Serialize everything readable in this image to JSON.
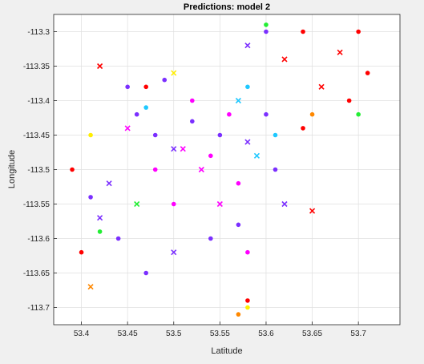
{
  "chart_data": {
    "type": "scatter",
    "title": "Predictions: model 2",
    "xlabel": "Latitude",
    "ylabel": "Longitude",
    "xlim": [
      53.37,
      53.745
    ],
    "ylim": [
      -113.725,
      -113.275
    ],
    "xticks": [
      53.4,
      53.45,
      53.5,
      53.55,
      53.6,
      53.65,
      53.7
    ],
    "xtick_labels": [
      "53.4",
      "53.45",
      "53.5",
      "53.55",
      "53.6",
      "53.65",
      "53.7"
    ],
    "yticks": [
      -113.3,
      -113.35,
      -113.4,
      -113.45,
      -113.5,
      -113.55,
      -113.6,
      -113.65,
      -113.7
    ],
    "ytick_labels": [
      "-113.3",
      "-113.35",
      "-113.4",
      "-113.45",
      "-113.5",
      "-113.55",
      "-113.6",
      "-113.65",
      "-113.7"
    ],
    "grid": true,
    "legend": "none",
    "marker_styles": [
      "filled-circle",
      "x-cross"
    ],
    "colors": {
      "violet": "#7b2fff",
      "blue_purple": "#5a20ee",
      "magenta": "#ff00ff",
      "pink": "#ff1aa0",
      "red": "#ff0000",
      "cyan": "#1fc8ff",
      "green": "#22ee33",
      "yellow": "#ffee00",
      "orange": "#ff8800"
    },
    "series": [
      {
        "color": "violet",
        "points": [
          [
            53.41,
            -113.54
          ],
          [
            53.43,
            -113.52
          ],
          [
            53.46,
            -113.42
          ],
          [
            53.48,
            -113.45
          ],
          [
            53.5,
            -113.47
          ],
          [
            53.52,
            -113.43
          ],
          [
            53.55,
            -113.45
          ],
          [
            53.58,
            -113.46
          ],
          [
            53.6,
            -113.42
          ],
          [
            53.61,
            -113.5
          ],
          [
            53.62,
            -113.55
          ],
          [
            53.57,
            -113.58
          ],
          [
            53.54,
            -113.6
          ],
          [
            53.5,
            -113.62
          ],
          [
            53.47,
            -113.65
          ],
          [
            53.44,
            -113.6
          ],
          [
            53.42,
            -113.57
          ],
          [
            53.45,
            -113.38
          ],
          [
            53.49,
            -113.37
          ],
          [
            53.58,
            -113.32
          ],
          [
            53.6,
            -113.3
          ]
        ]
      },
      {
        "color": "magenta",
        "points": [
          [
            53.52,
            -113.4
          ],
          [
            53.53,
            -113.5
          ],
          [
            53.5,
            -113.55
          ],
          [
            53.48,
            -113.5
          ],
          [
            53.55,
            -113.55
          ],
          [
            53.57,
            -113.52
          ],
          [
            53.56,
            -113.42
          ],
          [
            53.51,
            -113.47
          ],
          [
            53.54,
            -113.48
          ],
          [
            53.58,
            -113.62
          ],
          [
            53.45,
            -113.44
          ]
        ]
      },
      {
        "color": "red",
        "points": [
          [
            53.64,
            -113.3
          ],
          [
            53.68,
            -113.33
          ],
          [
            53.7,
            -113.3
          ],
          [
            53.71,
            -113.36
          ],
          [
            53.66,
            -113.38
          ],
          [
            53.69,
            -113.4
          ],
          [
            53.64,
            -113.44
          ],
          [
            53.42,
            -113.35
          ],
          [
            53.39,
            -113.5
          ],
          [
            53.4,
            -113.62
          ],
          [
            53.65,
            -113.56
          ],
          [
            53.58,
            -113.69
          ],
          [
            53.47,
            -113.38
          ],
          [
            53.62,
            -113.34
          ]
        ]
      },
      {
        "color": "cyan",
        "points": [
          [
            53.58,
            -113.38
          ],
          [
            53.59,
            -113.48
          ],
          [
            53.61,
            -113.45
          ],
          [
            53.47,
            -113.41
          ],
          [
            53.57,
            -113.4
          ]
        ]
      },
      {
        "color": "green",
        "points": [
          [
            53.6,
            -113.29
          ],
          [
            53.46,
            -113.55
          ],
          [
            53.7,
            -113.42
          ],
          [
            53.42,
            -113.59
          ]
        ]
      },
      {
        "color": "yellow",
        "points": [
          [
            53.58,
            -113.7
          ],
          [
            53.5,
            -113.36
          ],
          [
            53.41,
            -113.45
          ]
        ]
      },
      {
        "color": "orange",
        "points": [
          [
            53.57,
            -113.71
          ],
          [
            53.41,
            -113.67
          ],
          [
            53.65,
            -113.42
          ]
        ]
      }
    ]
  }
}
